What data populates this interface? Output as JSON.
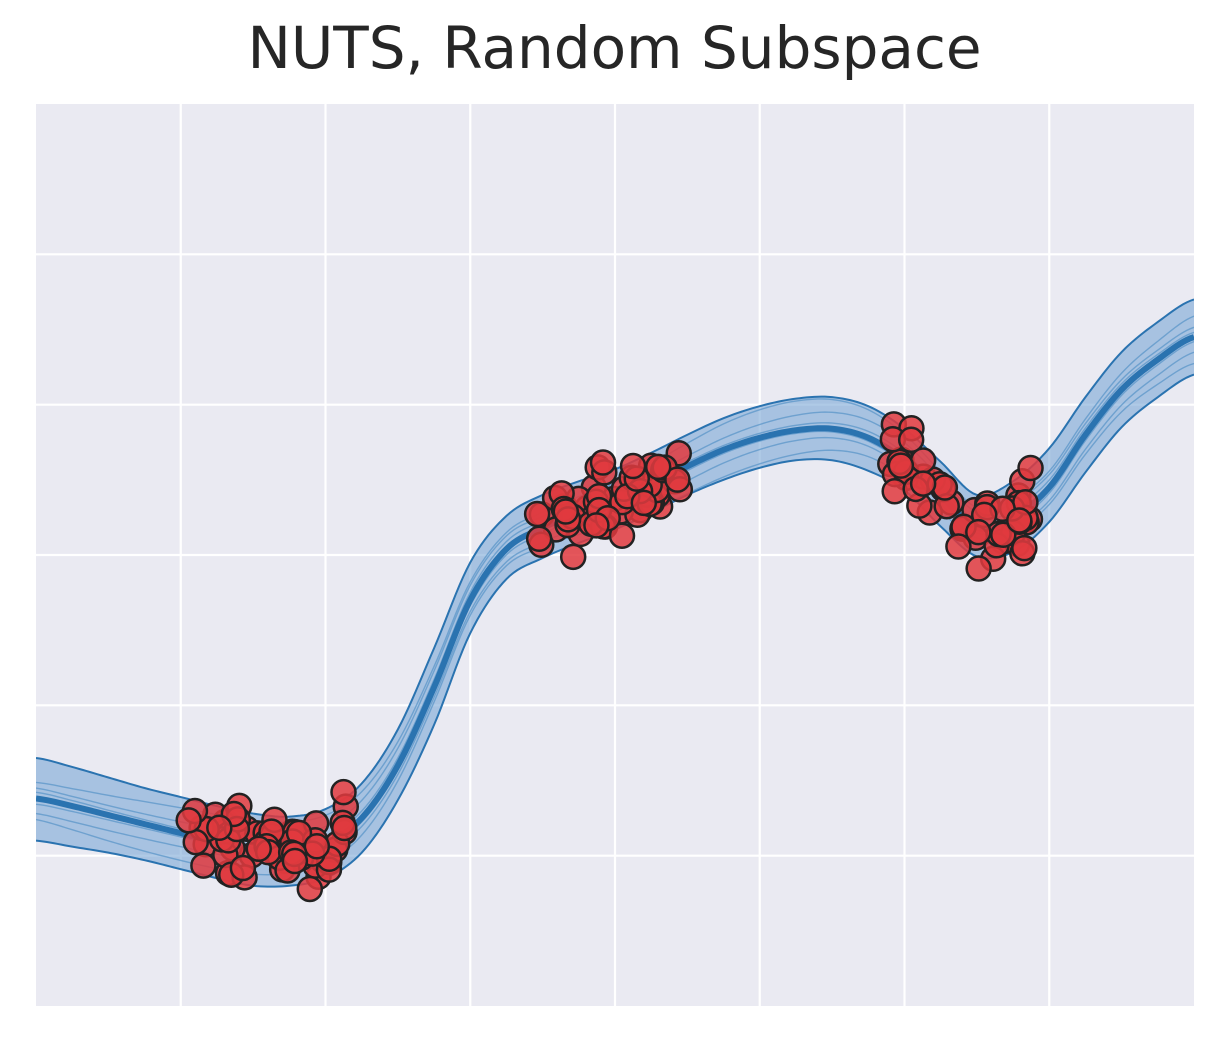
{
  "chart_data": {
    "type": "line",
    "title": "NUTS, Random Subspace",
    "xlabel": "",
    "ylabel": "",
    "xlim": [
      0,
      8
    ],
    "ylim": [
      -3,
      3
    ],
    "x_gridlines": [
      1,
      2,
      3,
      4,
      5,
      6,
      7
    ],
    "y_gridlines": [
      -2,
      -1,
      0,
      1,
      2
    ],
    "tick_labels_visible": false,
    "grid": true,
    "legend": "none",
    "colors": {
      "background": "#eaeaf2",
      "grid": "#ffffff",
      "mean_line": "#2a73b0",
      "band_fill": "#7aa6d6",
      "band_edge": "#2a73b0",
      "sample_lines": "#5b95c8",
      "points_fill": "#e0393e",
      "points_edge": "#222222",
      "title": "#262626"
    },
    "mean_curve": {
      "x": [
        0.0,
        0.25,
        0.5,
        0.75,
        1.0,
        1.25,
        1.5,
        1.75,
        2.0,
        2.25,
        2.5,
        2.75,
        3.0,
        3.25,
        3.5,
        3.75,
        4.0,
        4.25,
        4.5,
        4.75,
        5.0,
        5.25,
        5.5,
        5.75,
        6.0,
        6.25,
        6.5,
        6.75,
        7.0,
        7.25,
        7.5,
        7.75,
        8.0
      ],
      "y": [
        -1.62,
        -1.67,
        -1.73,
        -1.79,
        -1.85,
        -1.91,
        -1.96,
        -1.97,
        -1.92,
        -1.75,
        -1.4,
        -0.88,
        -0.3,
        0.04,
        0.18,
        0.28,
        0.36,
        0.47,
        0.59,
        0.7,
        0.78,
        0.83,
        0.84,
        0.78,
        0.63,
        0.4,
        0.18,
        0.25,
        0.45,
        0.8,
        1.1,
        1.3,
        1.45
      ]
    },
    "credible_band": {
      "lower": [
        -1.9,
        -1.94,
        -1.98,
        -2.03,
        -2.09,
        -2.15,
        -2.2,
        -2.2,
        -2.15,
        -1.98,
        -1.63,
        -1.13,
        -0.52,
        -0.16,
        -0.02,
        0.08,
        0.17,
        0.28,
        0.4,
        0.5,
        0.58,
        0.63,
        0.63,
        0.56,
        0.43,
        0.19,
        -0.01,
        0.02,
        0.22,
        0.55,
        0.85,
        1.05,
        1.2
      ],
      "upper": [
        -1.35,
        -1.41,
        -1.48,
        -1.55,
        -1.61,
        -1.67,
        -1.72,
        -1.74,
        -1.69,
        -1.52,
        -1.16,
        -0.62,
        -0.05,
        0.26,
        0.4,
        0.49,
        0.57,
        0.68,
        0.8,
        0.91,
        0.99,
        1.04,
        1.05,
        0.99,
        0.84,
        0.62,
        0.4,
        0.49,
        0.71,
        1.05,
        1.35,
        1.55,
        1.7
      ]
    },
    "sample_offsets": [
      -0.14,
      -0.08,
      -0.03,
      0.04,
      0.09,
      0.15
    ],
    "observations": {
      "clusters": [
        {
          "x_range": [
            1.05,
            2.15
          ],
          "count": 70
        },
        {
          "x_range": [
            3.45,
            4.45
          ],
          "count": 60
        },
        {
          "x_range": [
            5.9,
            6.9
          ],
          "count": 55
        }
      ]
    }
  }
}
